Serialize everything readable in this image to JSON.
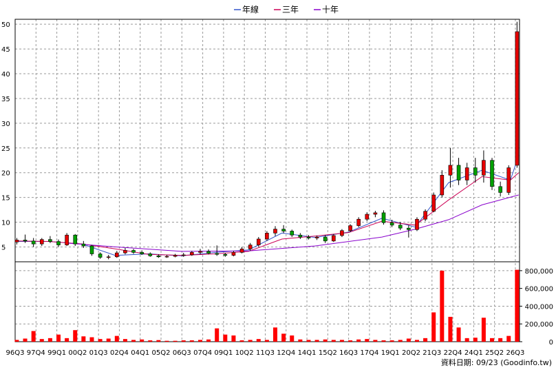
{
  "legend": [
    {
      "label": "年線",
      "color": "#3355cc"
    },
    {
      "label": "三年",
      "color": "#cc0055"
    },
    {
      "label": "十年",
      "color": "#8800cc"
    }
  ],
  "footer": "資料日期: 09/23  (Goodinfo.tw)",
  "colors": {
    "up": "#e60000",
    "down": "#00a000",
    "volume": "#ff0000",
    "grid": "#999999"
  },
  "chart_data": {
    "type": "candlestick",
    "price_axis": {
      "ticks": [
        5,
        10,
        15,
        20,
        25,
        30,
        35,
        40,
        45,
        50
      ],
      "ylim": [
        2,
        51
      ]
    },
    "volume_axis": {
      "ticks": [
        "0",
        "200,000",
        "400,000",
        "600,000",
        "800,000"
      ],
      "tick_values": [
        0,
        200000,
        400000,
        600000,
        800000
      ],
      "ylim": [
        0,
        900000
      ]
    },
    "x_labels": [
      "96Q3",
      "97Q4",
      "99Q1",
      "00Q2",
      "01Q3",
      "02Q4",
      "04Q1",
      "05Q2",
      "06Q3",
      "07Q4",
      "09Q1",
      "10Q2",
      "11Q3",
      "12Q4",
      "14Q1",
      "15Q2",
      "16Q3",
      "17Q4",
      "19Q1",
      "20Q2",
      "21Q3",
      "22Q4",
      "24Q1",
      "25Q2",
      "26Q3"
    ],
    "x_range": [
      1996.5,
      2026.75
    ],
    "candles": [
      {
        "t": 1996.6,
        "o": 6,
        "h": 6.8,
        "l": 5.5,
        "c": 6.4
      },
      {
        "t": 1997.1,
        "o": 6.4,
        "h": 7.5,
        "l": 5.8,
        "c": 6.2
      },
      {
        "t": 1997.6,
        "o": 6.2,
        "h": 6.8,
        "l": 5,
        "c": 5.6
      },
      {
        "t": 1998.1,
        "o": 5.6,
        "h": 6.8,
        "l": 5.2,
        "c": 6.5
      },
      {
        "t": 1998.6,
        "o": 6.5,
        "h": 7.2,
        "l": 5.8,
        "c": 6.1
      },
      {
        "t": 1999.1,
        "o": 6.1,
        "h": 6.5,
        "l": 5,
        "c": 5.4
      },
      {
        "t": 1999.6,
        "o": 5.4,
        "h": 7.8,
        "l": 5.2,
        "c": 7.4
      },
      {
        "t": 2000.1,
        "o": 7.4,
        "h": 7.6,
        "l": 5.2,
        "c": 5.6
      },
      {
        "t": 2000.6,
        "o": 5.6,
        "h": 6.2,
        "l": 4.8,
        "c": 5.2
      },
      {
        "t": 2001.1,
        "o": 5.2,
        "h": 5.4,
        "l": 3.2,
        "c": 3.6
      },
      {
        "t": 2001.6,
        "o": 3.6,
        "h": 3.9,
        "l": 2.6,
        "c": 2.9
      },
      {
        "t": 2002.1,
        "o": 2.9,
        "h": 3.4,
        "l": 2.5,
        "c": 3
      },
      {
        "t": 2002.6,
        "o": 3,
        "h": 4.2,
        "l": 2.8,
        "c": 3.8
      },
      {
        "t": 2003.1,
        "o": 3.8,
        "h": 4.8,
        "l": 3.5,
        "c": 4.3
      },
      {
        "t": 2003.6,
        "o": 4.3,
        "h": 4.6,
        "l": 3.6,
        "c": 3.9
      },
      {
        "t": 2004.1,
        "o": 3.9,
        "h": 4.3,
        "l": 3.4,
        "c": 3.6
      },
      {
        "t": 2004.6,
        "o": 3.6,
        "h": 3.9,
        "l": 3,
        "c": 3.2
      },
      {
        "t": 2005.1,
        "o": 3.2,
        "h": 3.5,
        "l": 2.8,
        "c": 3
      },
      {
        "t": 2005.6,
        "o": 3,
        "h": 3.4,
        "l": 2.8,
        "c": 3.1
      },
      {
        "t": 2006.1,
        "o": 3.1,
        "h": 3.6,
        "l": 2.9,
        "c": 3.3
      },
      {
        "t": 2006.6,
        "o": 3.3,
        "h": 3.8,
        "l": 3,
        "c": 3.4
      },
      {
        "t": 2007.1,
        "o": 3.4,
        "h": 4.2,
        "l": 3.2,
        "c": 3.9
      },
      {
        "t": 2007.6,
        "o": 3.9,
        "h": 4.6,
        "l": 3.5,
        "c": 4.1
      },
      {
        "t": 2008.1,
        "o": 4.1,
        "h": 4.5,
        "l": 3.5,
        "c": 3.7
      },
      {
        "t": 2008.6,
        "o": 3.7,
        "h": 5.3,
        "l": 3.2,
        "c": 3.5
      },
      {
        "t": 2009.1,
        "o": 3.5,
        "h": 3.8,
        "l": 3,
        "c": 3.3
      },
      {
        "t": 2009.6,
        "o": 3.3,
        "h": 4.2,
        "l": 3.1,
        "c": 3.9
      },
      {
        "t": 2010.1,
        "o": 3.9,
        "h": 5,
        "l": 3.7,
        "c": 4.6
      },
      {
        "t": 2010.6,
        "o": 4.6,
        "h": 5.8,
        "l": 4.2,
        "c": 5.4
      },
      {
        "t": 2011.1,
        "o": 5.4,
        "h": 7,
        "l": 5,
        "c": 6.6
      },
      {
        "t": 2011.6,
        "o": 6.6,
        "h": 8.2,
        "l": 6.2,
        "c": 7.8
      },
      {
        "t": 2012.1,
        "o": 7.8,
        "h": 9.2,
        "l": 7.2,
        "c": 8.6
      },
      {
        "t": 2012.6,
        "o": 8.6,
        "h": 9.4,
        "l": 7.8,
        "c": 8.2
      },
      {
        "t": 2013.1,
        "o": 8.2,
        "h": 8.5,
        "l": 7,
        "c": 7.4
      },
      {
        "t": 2013.6,
        "o": 7.4,
        "h": 7.8,
        "l": 6.6,
        "c": 7
      },
      {
        "t": 2014.1,
        "o": 7,
        "h": 7.4,
        "l": 6.5,
        "c": 6.8
      },
      {
        "t": 2014.6,
        "o": 6.8,
        "h": 7.3,
        "l": 6.4,
        "c": 7
      },
      {
        "t": 2015.1,
        "o": 7,
        "h": 7.4,
        "l": 5.8,
        "c": 6.2
      },
      {
        "t": 2015.6,
        "o": 6.2,
        "h": 7.6,
        "l": 6,
        "c": 7.3
      },
      {
        "t": 2016.1,
        "o": 7.3,
        "h": 8.6,
        "l": 7,
        "c": 8.3
      },
      {
        "t": 2016.6,
        "o": 8.3,
        "h": 9.6,
        "l": 8,
        "c": 9.3
      },
      {
        "t": 2017.1,
        "o": 9.3,
        "h": 11,
        "l": 9,
        "c": 10.6
      },
      {
        "t": 2017.6,
        "o": 10.6,
        "h": 12,
        "l": 10.2,
        "c": 11.6
      },
      {
        "t": 2018.1,
        "o": 11.6,
        "h": 12.3,
        "l": 11,
        "c": 11.9
      },
      {
        "t": 2018.6,
        "o": 11.9,
        "h": 12.4,
        "l": 9.5,
        "c": 9.9
      },
      {
        "t": 2019.1,
        "o": 9.9,
        "h": 10.5,
        "l": 9,
        "c": 9.4
      },
      {
        "t": 2019.6,
        "o": 9.4,
        "h": 10,
        "l": 8.4,
        "c": 8.8
      },
      {
        "t": 2020.1,
        "o": 8.8,
        "h": 9.4,
        "l": 6.9,
        "c": 8.5
      },
      {
        "t": 2020.6,
        "o": 8.5,
        "h": 11,
        "l": 8.2,
        "c": 10.6
      },
      {
        "t": 2021.1,
        "o": 10.6,
        "h": 12.6,
        "l": 10.2,
        "c": 12.2
      },
      {
        "t": 2021.6,
        "o": 12.2,
        "h": 16,
        "l": 12,
        "c": 15.5
      },
      {
        "t": 2022.1,
        "o": 15.5,
        "h": 20.5,
        "l": 15,
        "c": 19.5
      },
      {
        "t": 2022.6,
        "o": 19.5,
        "h": 25,
        "l": 17,
        "c": 21.5
      },
      {
        "t": 2023.1,
        "o": 21.5,
        "h": 23,
        "l": 17.5,
        "c": 18.5
      },
      {
        "t": 2023.6,
        "o": 18.5,
        "h": 22,
        "l": 17.5,
        "c": 21
      },
      {
        "t": 2024.1,
        "o": 21,
        "h": 23,
        "l": 18,
        "c": 19.5
      },
      {
        "t": 2024.6,
        "o": 19.5,
        "h": 24.5,
        "l": 18,
        "c": 22.5
      },
      {
        "t": 2025.1,
        "o": 22.5,
        "h": 23,
        "l": 16.5,
        "c": 17.2
      },
      {
        "t": 2025.6,
        "o": 17.2,
        "h": 18.2,
        "l": 15.2,
        "c": 16
      },
      {
        "t": 2026.1,
        "o": 16,
        "h": 21.5,
        "l": 15.5,
        "c": 21
      },
      {
        "t": 2026.6,
        "o": 21.5,
        "h": 50.5,
        "l": 21,
        "c": 48.5
      }
    ],
    "series": [
      {
        "name": "年線",
        "color": "#3355cc",
        "points": [
          [
            1996.6,
            6.1
          ],
          [
            1998.5,
            6.1
          ],
          [
            2000.5,
            5.6
          ],
          [
            2002.5,
            3.3
          ],
          [
            2004.5,
            3.6
          ],
          [
            2006.5,
            3.2
          ],
          [
            2008.5,
            3.9
          ],
          [
            2010.5,
            4.4
          ],
          [
            2012.5,
            7.8
          ],
          [
            2014.5,
            6.9
          ],
          [
            2016.5,
            8
          ],
          [
            2018.5,
            10.8
          ],
          [
            2020.5,
            9
          ],
          [
            2022.5,
            18
          ],
          [
            2024.5,
            20.5
          ],
          [
            2026.2,
            18.5
          ],
          [
            2026.7,
            23.5
          ]
        ]
      },
      {
        "name": "三年",
        "color": "#cc0055",
        "points": [
          [
            1996.6,
            6.2
          ],
          [
            1998.5,
            6.1
          ],
          [
            2000.5,
            5.6
          ],
          [
            2002.5,
            4.6
          ],
          [
            2004.5,
            3.5
          ],
          [
            2006.5,
            3.3
          ],
          [
            2008.5,
            3.6
          ],
          [
            2010.5,
            4.1
          ],
          [
            2012.5,
            6.6
          ],
          [
            2014.5,
            7.2
          ],
          [
            2016.5,
            7.9
          ],
          [
            2018.5,
            10.2
          ],
          [
            2020.5,
            9.4
          ],
          [
            2022.5,
            14.5
          ],
          [
            2024.5,
            19.2
          ],
          [
            2026.2,
            18.5
          ],
          [
            2026.7,
            20
          ]
        ]
      },
      {
        "name": "十年",
        "color": "#8800cc",
        "points": [
          [
            1999.5,
            5.8
          ],
          [
            2002.5,
            5
          ],
          [
            2006.5,
            4.1
          ],
          [
            2010.5,
            4.2
          ],
          [
            2014.5,
            5.2
          ],
          [
            2018.5,
            7
          ],
          [
            2020.5,
            8.6
          ],
          [
            2022.5,
            10.5
          ],
          [
            2024.5,
            13.5
          ],
          [
            2026.7,
            15.5
          ]
        ]
      }
    ],
    "volume": [
      [
        1996.6,
        20000
      ],
      [
        1997.1,
        35000
      ],
      [
        1997.6,
        120000
      ],
      [
        1998.1,
        30000
      ],
      [
        1998.6,
        40000
      ],
      [
        1999.1,
        80000
      ],
      [
        1999.6,
        40000
      ],
      [
        2000.1,
        130000
      ],
      [
        2000.6,
        60000
      ],
      [
        2001.1,
        50000
      ],
      [
        2001.6,
        30000
      ],
      [
        2002.1,
        35000
      ],
      [
        2002.6,
        65000
      ],
      [
        2003.1,
        30000
      ],
      [
        2003.6,
        20000
      ],
      [
        2004.1,
        25000
      ],
      [
        2004.6,
        15000
      ],
      [
        2005.1,
        18000
      ],
      [
        2005.6,
        10000
      ],
      [
        2006.1,
        10000
      ],
      [
        2006.6,
        15000
      ],
      [
        2007.1,
        15000
      ],
      [
        2007.6,
        20000
      ],
      [
        2008.1,
        25000
      ],
      [
        2008.6,
        150000
      ],
      [
        2009.1,
        80000
      ],
      [
        2009.6,
        70000
      ],
      [
        2010.1,
        15000
      ],
      [
        2010.6,
        20000
      ],
      [
        2011.1,
        30000
      ],
      [
        2011.6,
        20000
      ],
      [
        2012.1,
        160000
      ],
      [
        2012.6,
        90000
      ],
      [
        2013.1,
        70000
      ],
      [
        2013.6,
        25000
      ],
      [
        2014.1,
        20000
      ],
      [
        2014.6,
        20000
      ],
      [
        2015.1,
        25000
      ],
      [
        2015.6,
        20000
      ],
      [
        2016.1,
        20000
      ],
      [
        2016.6,
        15000
      ],
      [
        2017.1,
        25000
      ],
      [
        2017.6,
        30000
      ],
      [
        2018.1,
        20000
      ],
      [
        2018.6,
        15000
      ],
      [
        2019.1,
        15000
      ],
      [
        2019.6,
        20000
      ],
      [
        2020.1,
        35000
      ],
      [
        2020.6,
        20000
      ],
      [
        2021.1,
        40000
      ],
      [
        2021.6,
        330000
      ],
      [
        2022.1,
        800000
      ],
      [
        2022.6,
        280000
      ],
      [
        2023.1,
        160000
      ],
      [
        2023.6,
        40000
      ],
      [
        2024.1,
        45000
      ],
      [
        2024.6,
        270000
      ],
      [
        2025.1,
        40000
      ],
      [
        2025.6,
        40000
      ],
      [
        2026.1,
        65000
      ],
      [
        2026.6,
        810000
      ]
    ]
  }
}
